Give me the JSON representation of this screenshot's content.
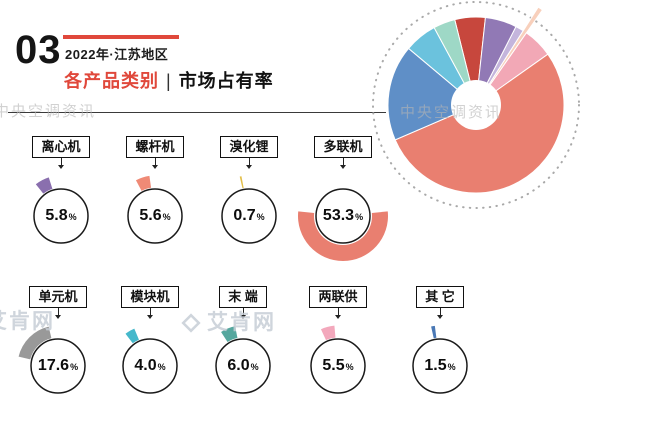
{
  "header": {
    "index": "03",
    "subtitle": "2022年·江苏地区",
    "title_accent": "各产品类别",
    "title_divider": "|",
    "title_main": "市场占有率",
    "accent_color": "#e0483b"
  },
  "unit": "%",
  "watermarks": {
    "zhongyang": "中央空调资讯",
    "aiken": "艾肯网"
  },
  "cards": [
    {
      "label": "离心机",
      "value": "5.8",
      "color": "#8a6fae",
      "angle": 332
    },
    {
      "label": "螺杆机",
      "value": "5.6",
      "color": "#ef8a76",
      "angle": 342
    },
    {
      "label": "溴化锂",
      "value": "0.7",
      "color": "#e3bf4a",
      "angle": 348
    },
    {
      "label": "多联机",
      "value": "53.3",
      "color": "#e97f70",
      "angle": 180,
      "thick": true
    },
    {
      "label": "单元机",
      "value": "17.6",
      "color": "#999999",
      "angle": 315
    },
    {
      "label": "模块机",
      "value": "4.0",
      "color": "#45b8cb",
      "angle": 330
    },
    {
      "label": "末 端",
      "value": "6.0",
      "color": "#55a79e",
      "angle": 338
    },
    {
      "label": "两联供",
      "value": "5.5",
      "color": "#f3a8bc",
      "angle": 345
    },
    {
      "label": "其 它",
      "value": "1.5",
      "color": "#4a78b5",
      "angle": 350
    }
  ],
  "chart_data": {
    "type": "pie",
    "title": "2022年·江苏地区 各产品类别 市场占有率",
    "unit": "%",
    "categories": [
      "多联机",
      "单元机",
      "末端",
      "离心机",
      "螺杆机",
      "两联供",
      "模块机",
      "其它",
      "溴化锂"
    ],
    "values": [
      53.3,
      17.6,
      6.0,
      5.8,
      5.6,
      5.5,
      4.0,
      1.5,
      0.7
    ],
    "legend": "none",
    "start_angle": -14,
    "hole_radius_ratio": 0.28,
    "donut_segments": [
      {
        "name": "螺杆机",
        "value": 5.6,
        "color": "#c7473d"
      },
      {
        "name": "离心机",
        "value": 5.8,
        "color": "#9179b5"
      },
      {
        "name": "其它",
        "value": 1.5,
        "color": "#c4b5dc"
      },
      {
        "name": "溴化锂",
        "value": 0.7,
        "color": "#f8d0bc",
        "extended": true
      },
      {
        "name": "两联供",
        "value": 5.5,
        "color": "#f2a8b6"
      },
      {
        "name": "多联机",
        "value": 53.3,
        "color": "#e97f70"
      },
      {
        "name": "单元机",
        "value": 17.6,
        "color": "#5f8fc7"
      },
      {
        "name": "末端",
        "value": 6.0,
        "color": "#6bc2dd"
      },
      {
        "name": "模块机",
        "value": 4.0,
        "color": "#9ed8c6"
      }
    ]
  }
}
